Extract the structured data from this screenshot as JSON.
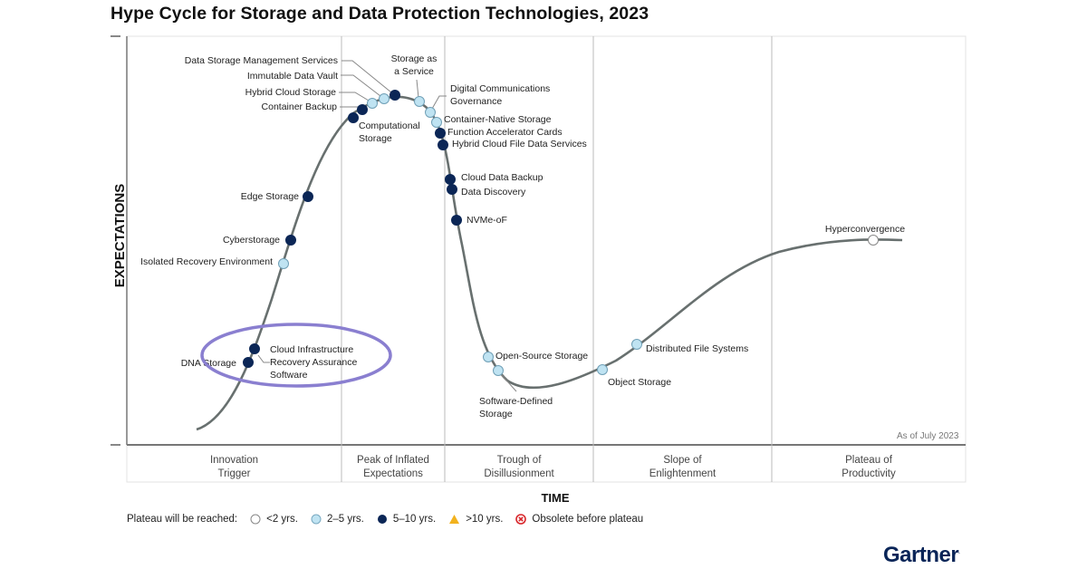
{
  "chart_data": {
    "type": "hype_cycle",
    "title": "Hype Cycle for Storage and Data Protection Technologies, 2023",
    "ylabel": "EXPECTATIONS",
    "xlabel": "TIME",
    "as_of": "As of July 2023",
    "phases": [
      {
        "name": "Innovation Trigger",
        "lines": [
          "Innovation",
          "Trigger"
        ]
      },
      {
        "name": "Peak of Inflated Expectations",
        "lines": [
          "Peak of Inflated",
          "Expectations"
        ]
      },
      {
        "name": "Trough of Disillusionment",
        "lines": [
          "Trough of",
          "Disillusionment"
        ]
      },
      {
        "name": "Slope of Enlightenment",
        "lines": [
          "Slope of",
          "Enlightenment"
        ]
      },
      {
        "name": "Plateau of Productivity",
        "lines": [
          "Plateau of",
          "Productivity"
        ]
      }
    ],
    "legend": {
      "title": "Plateau will be reached:",
      "items": [
        {
          "key": "lt2",
          "label": "<2 yrs.",
          "color": "#ffffff"
        },
        {
          "key": "2to5",
          "label": "2–5 yrs.",
          "color": "#bfe3f2"
        },
        {
          "key": "5to10",
          "label": "5–10 yrs.",
          "color": "#0b2656"
        },
        {
          "key": "gt10",
          "label": ">10 yrs.",
          "color": "#f2b21e"
        },
        {
          "key": "obsolete",
          "label": "Obsolete before plateau",
          "color": "#d8262b"
        }
      ]
    },
    "points": [
      {
        "label": [
          "DNA Storage"
        ],
        "category": "5to10",
        "phase": "Innovation Trigger"
      },
      {
        "label": [
          "Cloud Infrastructure",
          "Recovery Assurance",
          "Software"
        ],
        "category": "5to10",
        "phase": "Innovation Trigger",
        "highlighted": true
      },
      {
        "label": [
          "Isolated Recovery Environment"
        ],
        "category": "2to5",
        "phase": "Innovation Trigger"
      },
      {
        "label": [
          "Cyberstorage"
        ],
        "category": "5to10",
        "phase": "Innovation Trigger"
      },
      {
        "label": [
          "Edge Storage"
        ],
        "category": "5to10",
        "phase": "Innovation Trigger"
      },
      {
        "label": [
          "Computational",
          "Storage"
        ],
        "category": "5to10",
        "phase": "Innovation Trigger"
      },
      {
        "label": [
          "Container Backup"
        ],
        "category": "5to10",
        "phase": "Peak of Inflated Expectations"
      },
      {
        "label": [
          "Hybrid Cloud Storage"
        ],
        "category": "2to5",
        "phase": "Peak of Inflated Expectations"
      },
      {
        "label": [
          "Immutable Data Vault"
        ],
        "category": "2to5",
        "phase": "Peak of Inflated Expectations"
      },
      {
        "label": [
          "Data Storage Management Services"
        ],
        "category": "5to10",
        "phase": "Peak of Inflated Expectations"
      },
      {
        "label": [
          "Storage as",
          "a Service"
        ],
        "category": "2to5",
        "phase": "Peak of Inflated Expectations"
      },
      {
        "label": [
          "Digital Communications",
          "Governance"
        ],
        "category": "2to5",
        "phase": "Peak of Inflated Expectations"
      },
      {
        "label": [
          "Container-Native Storage"
        ],
        "category": "2to5",
        "phase": "Peak of Inflated Expectations"
      },
      {
        "label": [
          "Function Accelerator Cards"
        ],
        "category": "5to10",
        "phase": "Peak of Inflated Expectations"
      },
      {
        "label": [
          "Hybrid Cloud File Data Services"
        ],
        "category": "5to10",
        "phase": "Trough of Disillusionment"
      },
      {
        "label": [
          "Cloud Data Backup"
        ],
        "category": "5to10",
        "phase": "Trough of Disillusionment"
      },
      {
        "label": [
          "Data Discovery"
        ],
        "category": "5to10",
        "phase": "Trough of Disillusionment"
      },
      {
        "label": [
          "NVMe-oF"
        ],
        "category": "5to10",
        "phase": "Trough of Disillusionment"
      },
      {
        "label": [
          "Open-Source Storage"
        ],
        "category": "2to5",
        "phase": "Trough of Disillusionment"
      },
      {
        "label": [
          "Software-Defined",
          "Storage"
        ],
        "category": "2to5",
        "phase": "Trough of Disillusionment"
      },
      {
        "label": [
          "Object Storage"
        ],
        "category": "2to5",
        "phase": "Slope of Enlightenment"
      },
      {
        "label": [
          "Distributed File Systems"
        ],
        "category": "2to5",
        "phase": "Slope of Enlightenment"
      },
      {
        "label": [
          "Hyperconvergence"
        ],
        "category": "lt2",
        "phase": "Plateau of Productivity"
      }
    ]
  },
  "brand": {
    "logo": "Gartner",
    "highlight_color": "#8a7fd0"
  }
}
